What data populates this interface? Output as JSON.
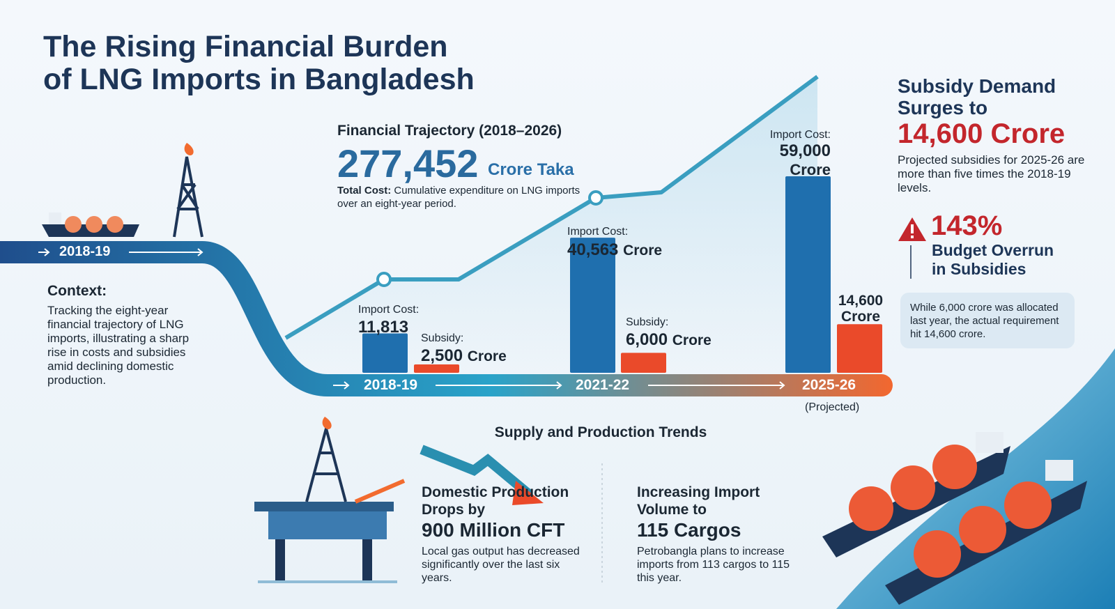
{
  "header": {
    "title": [
      "The Rising Financial Burden",
      "of LNG Imports in Bangladesh"
    ]
  },
  "intro": {
    "start_label": "2018-19"
  },
  "context": {
    "heading": "Context:",
    "text": "Tracking the eight-year financial trajectory of LNG imports, illustrating a sharp rise in costs and subsidies amid declining domestic production."
  },
  "trajectory": {
    "heading": "Financial Trajectory (2018–2026)",
    "total": "277,452",
    "unit": "Crore Taka",
    "note_label": "Total Cost:",
    "note": "Cumulative expenditure on LNG imports over an eight-year period."
  },
  "cost_chart": {
    "type": "bar",
    "periods": [
      {
        "label": "2018-19",
        "import": {
          "label": "Import Cost:",
          "value": 11813,
          "text": "11,813"
        },
        "subsidy": {
          "label": "Subsidy:",
          "value": 2500,
          "text": "2,500",
          "unit": "Crore"
        }
      },
      {
        "label": "2021-22",
        "import": {
          "label": "Import Cost:",
          "value": 40563,
          "text": "40,563",
          "unit": "Crore"
        },
        "subsidy": {
          "label": "Subsidy:",
          "value": 6000,
          "text": "6,000",
          "unit": "Crore"
        }
      },
      {
        "label": "2025-26",
        "note": "(Projected)",
        "import": {
          "label": "Import Cost:",
          "value": 59000,
          "text": "59,000",
          "unit": "Crore"
        },
        "subsidy": {
          "value": 14600,
          "text": "14,600",
          "unit": "Crore"
        }
      }
    ],
    "import_color": "#1f6fae",
    "subsidy_color": "#ea4a2a"
  },
  "subsidy_panel": {
    "heading": "Subsidy Demand Surges to",
    "amount": "14,600 Crore",
    "text": "Projected subsidies for 2025-26 are more than five times the 2018-19 levels.",
    "overrun": "143%",
    "overrun_label": "Budget Overrun in Subsidies",
    "callout": "While 6,000 crore was allocated last year, the actual requirement hit 14,600 crore."
  },
  "supply": {
    "heading": "Supply and Production Trends",
    "cards": [
      {
        "heading": "Domestic Production Drops by",
        "figure": "900 Million CFT",
        "text": "Local gas output has decreased significantly over the last six years."
      },
      {
        "heading": "Increasing Import Volume to",
        "figure": "115 Cargos",
        "text": "Petrobangla plans to increase imports from 113 cargos to 115 this year."
      }
    ]
  }
}
